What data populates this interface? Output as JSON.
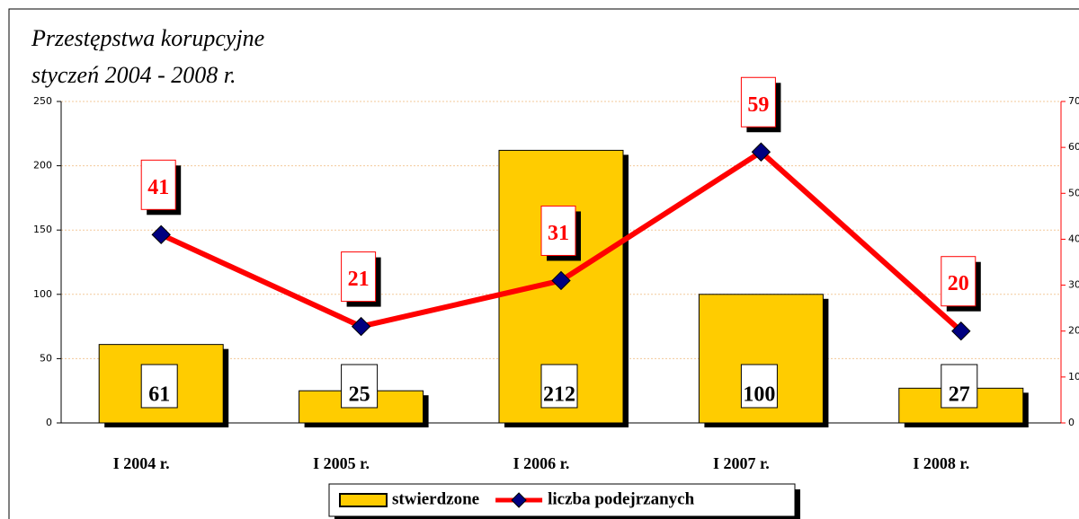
{
  "chart_data": {
    "type": "bar_line",
    "title": "Przestępstwa korupcyjne",
    "subtitle": "styczeń 2004 - 2008 r.",
    "categories": [
      "I 2004 r.",
      "I 2005 r.",
      "I 2006 r.",
      "I 2007 r.",
      "I 2008 r."
    ],
    "series": [
      {
        "name": "stwierdzone",
        "type": "bar",
        "color": "#ffcc00",
        "values": [
          61,
          25,
          212,
          100,
          27
        ]
      },
      {
        "name": "liczba podejrzanych",
        "type": "line",
        "axis": "y2",
        "color": "#ff0000",
        "marker_color": "#000080",
        "values": [
          41,
          21,
          31,
          59,
          20
        ]
      }
    ],
    "ylim": [
      0,
      250
    ],
    "yticks": [
      0,
      50,
      100,
      150,
      200,
      250
    ],
    "y2lim": [
      0,
      70
    ],
    "y2ticks": [
      0,
      10,
      20,
      30,
      40,
      50,
      60,
      70
    ],
    "grid": true,
    "legend": "bottom"
  }
}
